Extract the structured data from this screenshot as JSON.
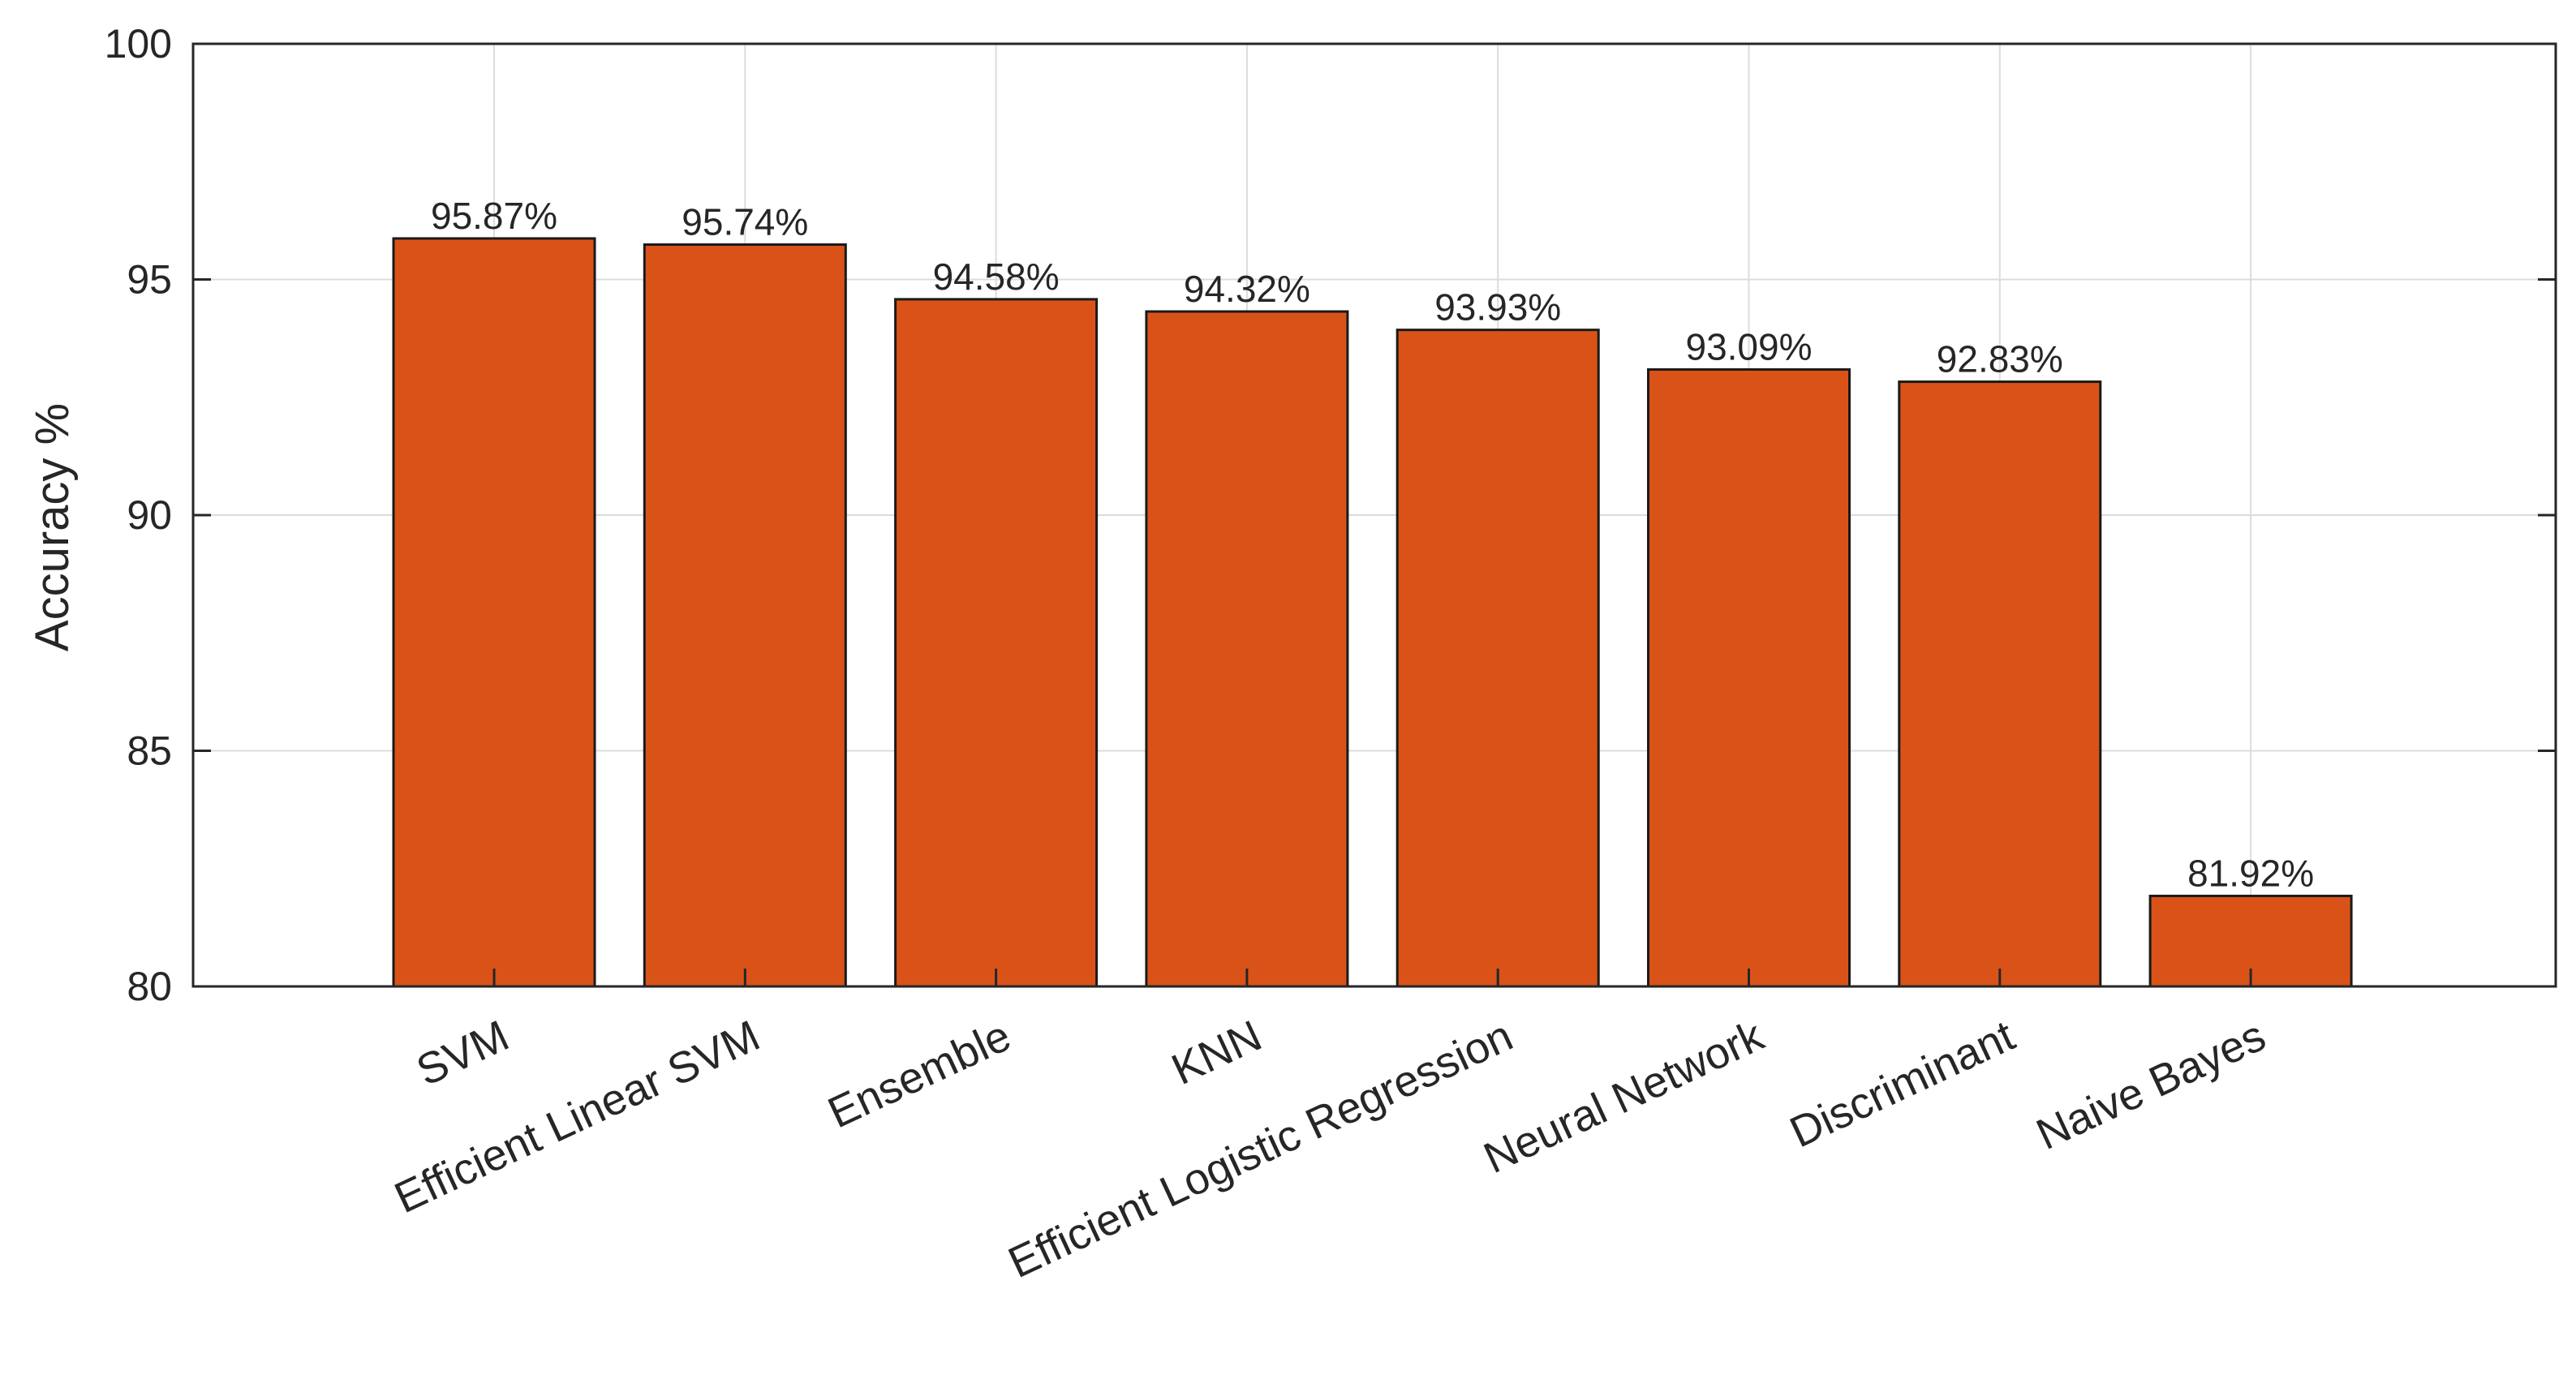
{
  "chart_data": {
    "type": "bar",
    "title": "",
    "xlabel": "",
    "ylabel": "Accuracy %",
    "ylim": [
      80,
      100
    ],
    "yticks": [
      80,
      85,
      90,
      95,
      100
    ],
    "grid": true,
    "legend": "none",
    "bar_color": "#D95319",
    "bar_edge_color": "#1a1a1a",
    "categories": [
      "SVM",
      "Efficient Linear SVM",
      "Ensemble",
      "KNN",
      "Efficient Logistic Regression",
      "Neural Network",
      "Discriminant",
      "Naive Bayes"
    ],
    "values": [
      95.87,
      95.74,
      94.58,
      94.32,
      93.93,
      93.09,
      92.83,
      81.92
    ],
    "value_labels": [
      "95.87%",
      "95.74%",
      "94.58%",
      "94.32%",
      "93.93%",
      "93.09%",
      "92.83%",
      "81.92%"
    ]
  }
}
